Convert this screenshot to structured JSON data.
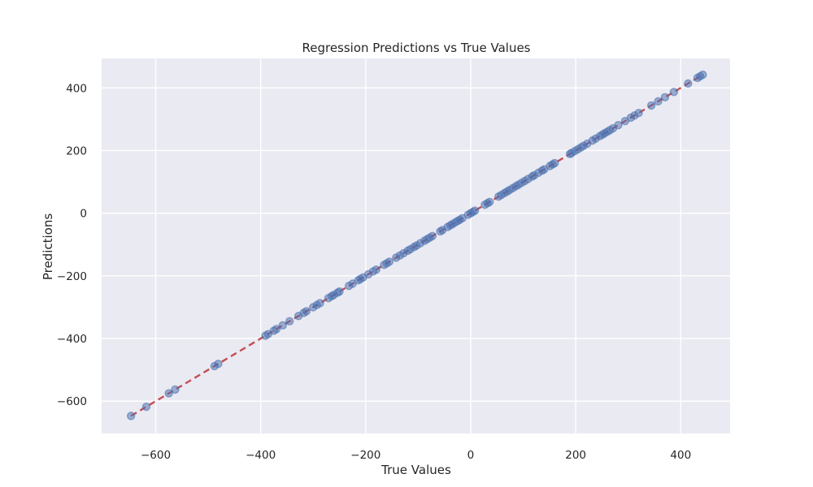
{
  "chart_data": {
    "type": "scatter",
    "title": "Regression Predictions vs True Values",
    "xlabel": "True Values",
    "ylabel": "Predictions",
    "xlim": [
      -703,
      494
    ],
    "ylim": [
      -703,
      494
    ],
    "x_ticks": [
      -600,
      -400,
      -200,
      0,
      200,
      400
    ],
    "y_ticks": [
      -600,
      -400,
      -200,
      0,
      200,
      400
    ],
    "x_tick_labels": [
      "−600",
      "−400",
      "−200",
      "0",
      "200",
      "400"
    ],
    "y_tick_labels": [
      "−600",
      "−400",
      "−200",
      "0",
      "200",
      "400"
    ],
    "grid": true,
    "background_color": "#EAEAF2",
    "point_color": "#4C72B0",
    "line_color": "#C44E52",
    "reference_line": {
      "x": [
        -647,
        442
      ],
      "y": [
        -647,
        442
      ]
    },
    "series": [
      {
        "values": [
          [
            -647,
            -647
          ],
          [
            -618,
            -618
          ],
          [
            -575,
            -575
          ],
          [
            -563,
            -563
          ],
          [
            -488,
            -488
          ],
          [
            -481,
            -481
          ],
          [
            -391,
            -391
          ],
          [
            -386,
            -386
          ],
          [
            -375,
            -375
          ],
          [
            -370,
            -370
          ],
          [
            -358,
            -358
          ],
          [
            -345,
            -345
          ],
          [
            -328,
            -328
          ],
          [
            -318,
            -318
          ],
          [
            -313,
            -313
          ],
          [
            -300,
            -300
          ],
          [
            -293,
            -293
          ],
          [
            -287,
            -287
          ],
          [
            -271,
            -271
          ],
          [
            -265,
            -265
          ],
          [
            -261,
            -261
          ],
          [
            -254,
            -254
          ],
          [
            -250,
            -250
          ],
          [
            -232,
            -232
          ],
          [
            -225,
            -225
          ],
          [
            -214,
            -214
          ],
          [
            -210,
            -210
          ],
          [
            -205,
            -205
          ],
          [
            -195,
            -195
          ],
          [
            -186,
            -186
          ],
          [
            -180,
            -180
          ],
          [
            -165,
            -165
          ],
          [
            -160,
            -160
          ],
          [
            -155,
            -155
          ],
          [
            -142,
            -142
          ],
          [
            -135,
            -135
          ],
          [
            -128,
            -128
          ],
          [
            -120,
            -120
          ],
          [
            -115,
            -115
          ],
          [
            -108,
            -108
          ],
          [
            -103,
            -103
          ],
          [
            -96,
            -96
          ],
          [
            -88,
            -88
          ],
          [
            -83,
            -83
          ],
          [
            -78,
            -78
          ],
          [
            -73,
            -73
          ],
          [
            -58,
            -58
          ],
          [
            -54,
            -54
          ],
          [
            -44,
            -44
          ],
          [
            -39,
            -39
          ],
          [
            -35,
            -35
          ],
          [
            -30,
            -30
          ],
          [
            -25,
            -25
          ],
          [
            -21,
            -21
          ],
          [
            -16,
            -16
          ],
          [
            -5,
            -5
          ],
          [
            0,
            0
          ],
          [
            4,
            4
          ],
          [
            8,
            8
          ],
          [
            27,
            27
          ],
          [
            32,
            32
          ],
          [
            36,
            36
          ],
          [
            53,
            53
          ],
          [
            58,
            58
          ],
          [
            64,
            64
          ],
          [
            69,
            69
          ],
          [
            74,
            74
          ],
          [
            80,
            80
          ],
          [
            86,
            86
          ],
          [
            91,
            91
          ],
          [
            97,
            97
          ],
          [
            103,
            103
          ],
          [
            109,
            109
          ],
          [
            117,
            117
          ],
          [
            121,
            121
          ],
          [
            129,
            129
          ],
          [
            136,
            136
          ],
          [
            140,
            140
          ],
          [
            151,
            151
          ],
          [
            156,
            156
          ],
          [
            160,
            160
          ],
          [
            189,
            189
          ],
          [
            192,
            192
          ],
          [
            198,
            198
          ],
          [
            204,
            204
          ],
          [
            210,
            210
          ],
          [
            215,
            215
          ],
          [
            222,
            222
          ],
          [
            232,
            232
          ],
          [
            238,
            238
          ],
          [
            246,
            246
          ],
          [
            251,
            251
          ],
          [
            255,
            255
          ],
          [
            260,
            260
          ],
          [
            265,
            265
          ],
          [
            271,
            271
          ],
          [
            281,
            281
          ],
          [
            294,
            294
          ],
          [
            305,
            305
          ],
          [
            312,
            312
          ],
          [
            320,
            320
          ],
          [
            344,
            344
          ],
          [
            357,
            357
          ],
          [
            370,
            370
          ],
          [
            387,
            387
          ],
          [
            414,
            414
          ],
          [
            432,
            432
          ],
          [
            437,
            437
          ],
          [
            442,
            442
          ]
        ]
      }
    ]
  }
}
